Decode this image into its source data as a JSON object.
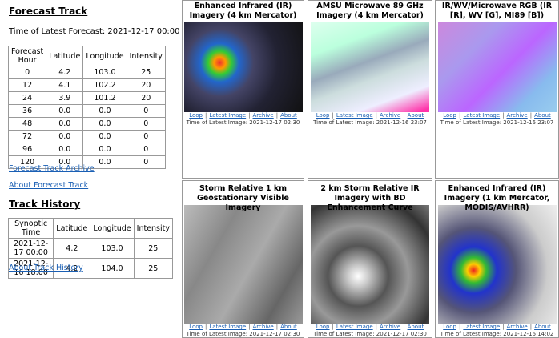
{
  "forecast_track": {
    "title": "Forecast Track",
    "latest": "Time of Latest Forecast: 2021-12-17 00:00",
    "columns": [
      "Forecast Hour",
      "Latitude",
      "Longitude",
      "Intensity"
    ],
    "rows": [
      [
        "0",
        "4.2",
        "103.0",
        "25"
      ],
      [
        "12",
        "4.1",
        "102.2",
        "20"
      ],
      [
        "24",
        "3.9",
        "101.2",
        "20"
      ],
      [
        "36",
        "0.0",
        "0.0",
        "0"
      ],
      [
        "48",
        "0.0",
        "0.0",
        "0"
      ],
      [
        "72",
        "0.0",
        "0.0",
        "0"
      ],
      [
        "96",
        "0.0",
        "0.0",
        "0"
      ],
      [
        "120",
        "0.0",
        "0.0",
        "0"
      ]
    ]
  },
  "links": [
    "Forecast Track Archive",
    "About Forecast Track"
  ],
  "track_history": {
    "title": "Track History",
    "columns": [
      "Synoptic Time",
      "Latitude",
      "Longitude",
      "Intensity"
    ],
    "rows": [
      [
        "2021-12-17 00:00",
        "4.2",
        "103.0",
        "25"
      ],
      [
        "2021-12-16 18:00",
        "4.2",
        "104.0",
        "25"
      ]
    ],
    "link": "About Track History"
  },
  "separator": "|",
  "panels": [
    {
      "title": "Enhanced Infrared (IR) Imagery (4 km Mercator)",
      "links": [
        "Loop",
        "Latest Image",
        "Archive",
        "About"
      ],
      "time": "Time of Latest Image: 2021-12-17 02:30"
    },
    {
      "title": "AMSU Microwave 89 GHz Imagery (4 km Mercator)",
      "links": [
        "Loop",
        "Latest Image",
        "Archive",
        "About"
      ],
      "time": "Time of Latest Image: 2021-12-16 23:07"
    },
    {
      "title": "IR/WV/Microwave RGB (IR [R], WV [G], MI89 [B])",
      "links": [
        "Loop",
        "Latest Image",
        "Archive",
        "About"
      ],
      "time": "Time of Latest Image: 2021-12-16 23:07"
    },
    {
      "title": "Storm Relative 1 km Geostationary Visible Imagery",
      "links": [
        "Loop",
        "Latest Image",
        "Archive",
        "About"
      ],
      "time": "Time of Latest Image: 2021-12-17 02:30"
    },
    {
      "title": "2 km Storm Relative IR Imagery with BD Enhancement Curve",
      "links": [
        "Loop",
        "Latest Image",
        "Archive",
        "About"
      ],
      "time": "Time of Latest Image: 2021-12-17 02:30"
    },
    {
      "title": "Enhanced Infrared (IR) Imagery (1 km Mercator, MODIS/AVHRR)",
      "links": [
        "Loop",
        "Latest Image",
        "Archive",
        "About"
      ],
      "time": "Time of Latest Image: 2021-12-16 14:02"
    }
  ]
}
